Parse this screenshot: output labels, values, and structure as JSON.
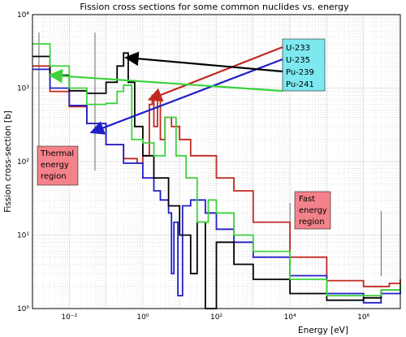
{
  "chart_data": {
    "type": "line",
    "title": "Fission cross sections for some common nuclides vs. energy",
    "xlabel": "Energy [eV]",
    "ylabel": "Fission cross-section [b]",
    "xscale": "log",
    "yscale": "log",
    "xlim": [
      0.001,
      10000000
    ],
    "ylim": [
      1,
      10000
    ],
    "grid": true,
    "x_tick_labels": [
      "10⁻²",
      "10⁰",
      "10²",
      "10⁴",
      "10⁶"
    ],
    "y_tick_labels": [
      "10⁰",
      "10¹",
      "10²",
      "10³",
      "10⁴"
    ],
    "legend_position": "top-right",
    "annotations": [
      {
        "text": "Thermal energy region",
        "lines": [
          "Thermal",
          "energy",
          "region"
        ],
        "x_range": [
          0.0015,
          0.05
        ]
      },
      {
        "text": "Fast energy region",
        "lines": [
          "Fast",
          "energy",
          "region"
        ],
        "x_range": [
          10000,
          3000000
        ]
      }
    ],
    "series": [
      {
        "name": "U-233",
        "color": "#c0281e",
        "x": [
          0.001,
          0.003,
          0.01,
          0.03,
          0.1,
          0.3,
          0.7,
          1.0,
          1.5,
          1.8,
          2.0,
          2.5,
          3.0,
          4.0,
          6.0,
          10,
          20,
          50,
          100,
          300,
          1000,
          10000,
          100000,
          1000000,
          5000000,
          10000000
        ],
        "y": [
          2000,
          900,
          560,
          330,
          170,
          110,
          95,
          120,
          600,
          800,
          300,
          700,
          200,
          400,
          300,
          200,
          120,
          120,
          60,
          40,
          15,
          5.0,
          2.4,
          2.0,
          2.2,
          2.5
        ]
      },
      {
        "name": "U-235",
        "color": "#1e1ec8",
        "x": [
          0.001,
          0.003,
          0.01,
          0.03,
          0.1,
          0.3,
          1.0,
          2.0,
          3.0,
          5.0,
          6.0,
          7.0,
          9.0,
          12,
          20,
          50,
          100,
          300,
          1000,
          10000,
          100000,
          1000000,
          3000000,
          10000000
        ],
        "y": [
          1800,
          1000,
          580,
          330,
          170,
          95,
          60,
          40,
          30,
          20,
          3.0,
          15,
          1.5,
          25,
          30,
          20,
          12,
          8,
          5,
          2.8,
          1.6,
          1.2,
          1.6,
          2.0
        ]
      },
      {
        "name": "Pu-239",
        "color": "#000000",
        "x": [
          0.001,
          0.003,
          0.01,
          0.03,
          0.1,
          0.2,
          0.3,
          0.4,
          0.6,
          1.0,
          2.0,
          5.0,
          10,
          20,
          30,
          50,
          100,
          300,
          1000,
          10000,
          100000,
          1000000,
          3000000,
          10000000
        ],
        "y": [
          2700,
          1500,
          920,
          850,
          1200,
          2000,
          3000,
          1200,
          300,
          120,
          60,
          25,
          10,
          3.0,
          15,
          1.0,
          8,
          4,
          2.5,
          1.6,
          1.3,
          1.4,
          1.8,
          2.2
        ]
      },
      {
        "name": "Pu-241",
        "color": "#3cd23c",
        "x": [
          0.001,
          0.003,
          0.01,
          0.03,
          0.1,
          0.2,
          0.3,
          0.5,
          1.0,
          2.0,
          4.0,
          8.0,
          15,
          30,
          60,
          100,
          300,
          1000,
          10000,
          100000,
          1000000,
          3000000,
          10000000
        ],
        "y": [
          4000,
          2000,
          1000,
          600,
          620,
          900,
          1100,
          200,
          180,
          120,
          400,
          120,
          60,
          15,
          30,
          20,
          10,
          6,
          2.5,
          1.5,
          1.5,
          1.8,
          2.2
        ]
      }
    ]
  }
}
